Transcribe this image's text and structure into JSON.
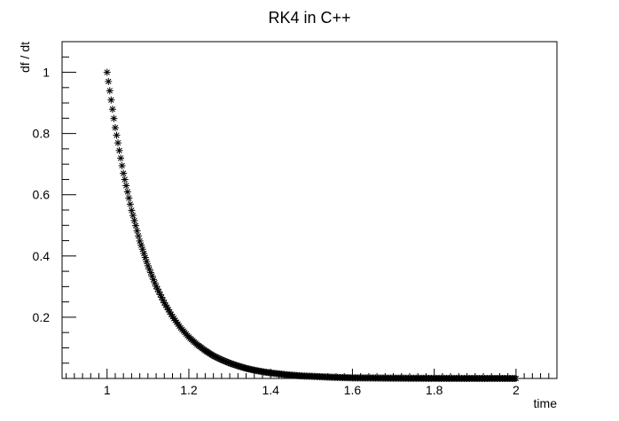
{
  "chart_data": {
    "type": "scatter",
    "title": "RK4 in C++",
    "xlabel": "time",
    "ylabel": "df / dt",
    "xlim": [
      0.89,
      2.1
    ],
    "ylim": [
      0.0,
      1.1
    ],
    "x_ticks": [
      1,
      1.2,
      1.4,
      1.6,
      1.8,
      2
    ],
    "x_tick_labels": [
      "1",
      "1.2",
      "1.4",
      "1.6",
      "1.8",
      "2"
    ],
    "y_ticks": [
      0.2,
      0.4,
      0.6,
      0.8,
      1
    ],
    "y_tick_labels": [
      "0.2",
      "0.4",
      "0.6",
      "0.8",
      "1"
    ],
    "grid": false,
    "legend": "none",
    "marker": "asterisk",
    "marker_color": "#000000",
    "series": [
      {
        "x": [
          1.0,
          1.02,
          1.04,
          1.06,
          1.08,
          1.1,
          1.12,
          1.14,
          1.16,
          1.18,
          1.2,
          1.22,
          1.24,
          1.26,
          1.28,
          1.3,
          1.32,
          1.34,
          1.36,
          1.38,
          1.4,
          1.42,
          1.44,
          1.46,
          1.48,
          1.5,
          1.55,
          1.6,
          1.65,
          1.7,
          1.75,
          1.8,
          1.85,
          1.9,
          1.95,
          2.0
        ],
        "y": [
          1.0,
          0.819,
          0.67,
          0.549,
          0.449,
          0.368,
          0.301,
          0.247,
          0.202,
          0.165,
          0.135,
          0.111,
          0.091,
          0.074,
          0.061,
          0.05,
          0.041,
          0.033,
          0.027,
          0.022,
          0.018,
          0.015,
          0.012,
          0.01,
          0.008,
          0.007,
          0.004,
          0.002,
          0.0015,
          0.0009,
          0.0006,
          0.0003,
          0.0002,
          0.0001,
          0.0001,
          0.0
        ]
      }
    ]
  }
}
